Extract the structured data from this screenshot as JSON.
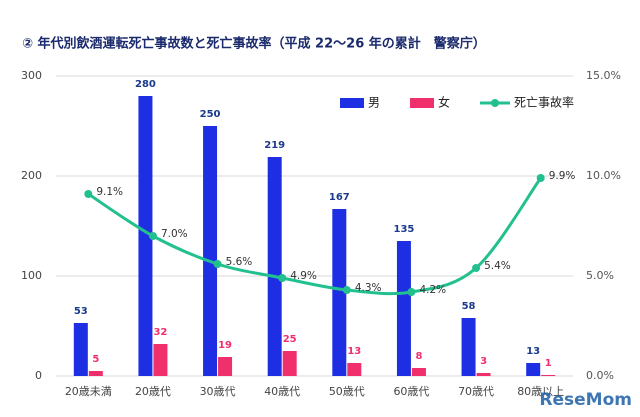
{
  "chart_data": {
    "type": "bar-line",
    "title": "② 年代別飲酒運転死亡事故数と死亡事故率（平成 22～26 年の累計　警察庁）",
    "categories": [
      "20歳未満",
      "20歳代",
      "30歳代",
      "40歳代",
      "50歳代",
      "60歳代",
      "70歳代",
      "80歳以上"
    ],
    "series": [
      {
        "name": "男",
        "color": "#1e2fe3",
        "kind": "bar",
        "values": [
          53,
          280,
          250,
          219,
          167,
          135,
          58,
          13
        ]
      },
      {
        "name": "女",
        "color": "#f0306c",
        "kind": "bar",
        "values": [
          5,
          32,
          19,
          25,
          13,
          8,
          3,
          1
        ]
      },
      {
        "name": "死亡事故率",
        "color": "#22c08f",
        "kind": "line",
        "axis": "y2",
        "values": [
          9.1,
          7.0,
          5.6,
          4.9,
          4.3,
          4.2,
          5.4,
          9.9
        ],
        "value_labels": [
          "9.1%",
          "7.0%",
          "5.6%",
          "4.9%",
          "4.3%",
          "4.2%",
          "5.4%",
          "9.9%"
        ]
      }
    ],
    "ylim": [
      0,
      300
    ],
    "yticks": [
      0,
      100,
      200,
      300
    ],
    "y2lim": [
      0,
      15
    ],
    "y2ticks": [
      {
        "value": 0,
        "label": "0.0%"
      },
      {
        "value": 5,
        "label": "5.0%"
      },
      {
        "value": 10,
        "label": "10.0%"
      },
      {
        "value": 15,
        "label": "15.0%"
      }
    ],
    "grid": true,
    "legend": "top-right",
    "watermark": "ReseMom"
  }
}
